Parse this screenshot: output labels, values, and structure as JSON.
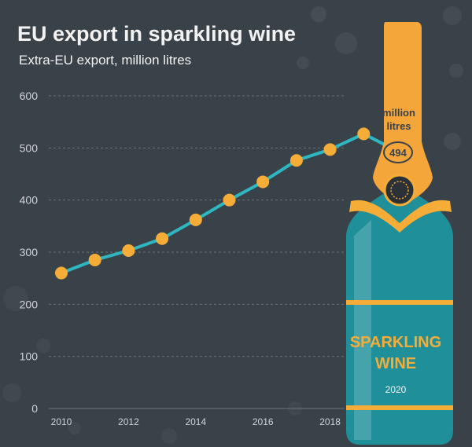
{
  "header": {
    "title": "EU export in sparkling wine",
    "subtitle": "Extra-EU export, million litres"
  },
  "bottle": {
    "unit_line1": "million",
    "unit_line2": "litres",
    "value": "494",
    "label_line1": "SPARKLING",
    "label_line2": "WINE",
    "year": "2020"
  },
  "colors": {
    "background": "#3a4249",
    "line": "#2fb7c1",
    "marker": "#f6ad38",
    "accent": "#f6ad38",
    "bottle_body": "#1f8f99",
    "bottle_neck": "#f4a63a",
    "text": "#f2f2f2",
    "tick_text": "#cfd3d6",
    "gridline": "#6b737a"
  },
  "chart_data": {
    "type": "line",
    "title": "EU export in sparkling wine",
    "subtitle": "Extra-EU export, million litres",
    "x": [
      2010,
      2011,
      2012,
      2013,
      2014,
      2015,
      2016,
      2017,
      2018,
      2019,
      2020
    ],
    "series": [
      {
        "values": [
          260,
          285,
          303,
          326,
          362,
          400,
          435,
          476,
          497,
          527,
          494
        ]
      }
    ],
    "x_tick_labels": [
      "2010",
      "2012",
      "2014",
      "2016",
      "2018"
    ],
    "y_tick_labels": [
      "0",
      "100",
      "200",
      "300",
      "400",
      "500",
      "600"
    ],
    "ylim": [
      0,
      600
    ],
    "xlim": [
      2010,
      2020
    ],
    "grid": "horizontal dashed",
    "annotation": {
      "x": 2020,
      "value": 494,
      "text": "494"
    }
  }
}
